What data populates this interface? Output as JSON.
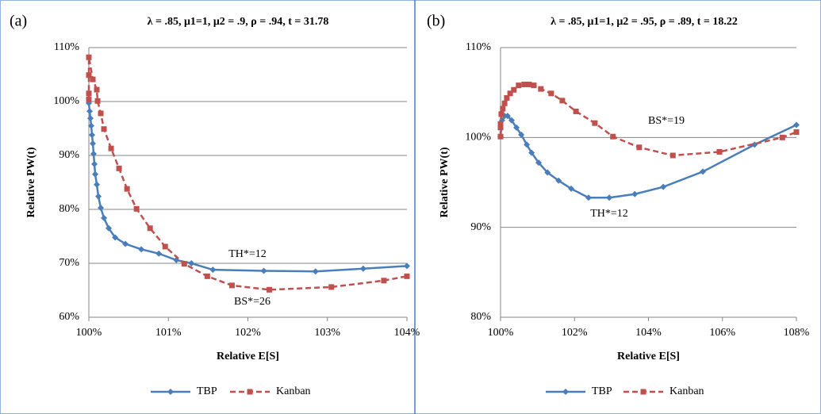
{
  "chart_data": [
    {
      "type": "line",
      "panel_label": "(a)",
      "title": "λ = .85, μ1=1, μ2 = .9, ρ = .94, t = 31.78",
      "x_label": "Relative E[S]",
      "y_label": "Relative PW(t)",
      "xlim": [
        100,
        104
      ],
      "ylim": [
        60,
        110
      ],
      "grid": true,
      "legend": "bottom",
      "xticks": [
        {
          "value": 100,
          "label": "100%"
        },
        {
          "value": 101,
          "label": "101%"
        },
        {
          "value": 102,
          "label": "102%"
        },
        {
          "value": 103,
          "label": "103%"
        },
        {
          "value": 104,
          "label": "104%"
        }
      ],
      "yticks": [
        {
          "value": 60,
          "label": "60%"
        },
        {
          "value": 70,
          "label": "70%"
        },
        {
          "value": 80,
          "label": "80%"
        },
        {
          "value": 90,
          "label": "90%"
        },
        {
          "value": 100,
          "label": "100%"
        },
        {
          "value": 110,
          "label": "110%"
        }
      ],
      "annotations": [
        "TH*=12",
        "BS*=26"
      ],
      "series": [
        {
          "name": "TBP",
          "color": "#4a7ebb",
          "marker": "diamond",
          "dash": false,
          "x": [
            100.0,
            100.01,
            100.02,
            100.03,
            100.04,
            100.05,
            100.06,
            100.07,
            100.08,
            100.1,
            100.12,
            100.15,
            100.19,
            100.25,
            100.33,
            100.46,
            100.66,
            100.88,
            101.1,
            101.29,
            101.56,
            102.2,
            102.85,
            103.45,
            104.0
          ],
          "values": [
            99.7,
            98.2,
            96.9,
            95.5,
            93.8,
            92.2,
            90.3,
            88.4,
            86.5,
            84.6,
            82.4,
            80.3,
            78.4,
            76.5,
            74.8,
            73.6,
            72.6,
            71.8,
            70.6,
            70.0,
            68.8,
            68.6,
            68.5,
            69.0,
            69.5
          ]
        },
        {
          "name": "Kanban",
          "color": "#c0504d",
          "marker": "square",
          "dash": true,
          "x": [
            100.0,
            100.0,
            100.0,
            100.0,
            100.05,
            100.1,
            100.11,
            100.15,
            100.19,
            100.28,
            100.38,
            100.48,
            100.6,
            100.77,
            100.96,
            101.2,
            101.49,
            101.8,
            102.27,
            103.05,
            103.71,
            104.0
          ],
          "values": [
            100.4,
            101.5,
            104.9,
            108.2,
            104.1,
            102.2,
            100.1,
            97.8,
            94.9,
            91.3,
            87.6,
            83.8,
            80.1,
            76.5,
            73.1,
            69.9,
            67.6,
            65.9,
            65.1,
            65.6,
            66.8,
            67.6
          ]
        }
      ]
    },
    {
      "type": "line",
      "panel_label": "(b)",
      "title": "λ = .85, μ1=1, μ2 = .95, ρ = .89, t = 18.22",
      "x_label": "Relative E[S]",
      "y_label": "Relative PW(t)",
      "xlim": [
        100,
        108
      ],
      "ylim": [
        80,
        110
      ],
      "grid": true,
      "legend": "bottom",
      "xticks": [
        {
          "value": 100,
          "label": "100%"
        },
        {
          "value": 102,
          "label": "102%"
        },
        {
          "value": 104,
          "label": "104%"
        },
        {
          "value": 106,
          "label": "106%"
        },
        {
          "value": 108,
          "label": "108%"
        }
      ],
      "yticks": [
        {
          "value": 80,
          "label": "80%"
        },
        {
          "value": 90,
          "label": "90%"
        },
        {
          "value": 100,
          "label": "100%"
        },
        {
          "value": 110,
          "label": "110%"
        }
      ],
      "annotations": [
        "BS*=19",
        "TH*=12"
      ],
      "series": [
        {
          "name": "TBP",
          "color": "#4a7ebb",
          "marker": "diamond",
          "dash": false,
          "x": [
            100.0,
            100.04,
            100.11,
            100.19,
            100.3,
            100.43,
            100.56,
            100.71,
            100.84,
            101.03,
            101.27,
            101.57,
            101.91,
            102.38,
            102.94,
            103.63,
            104.4,
            105.47,
            106.87,
            108.0
          ],
          "values": [
            100.1,
            101.9,
            102.4,
            102.4,
            101.9,
            101.1,
            100.3,
            99.2,
            98.3,
            97.2,
            96.1,
            95.2,
            94.3,
            93.3,
            93.3,
            93.7,
            94.5,
            96.2,
            99.2,
            101.4
          ]
        },
        {
          "name": "Kanban",
          "color": "#c0504d",
          "marker": "square",
          "dash": true,
          "x": [
            100.0,
            100.0,
            100.0,
            100.02,
            100.06,
            100.11,
            100.17,
            100.26,
            100.36,
            100.49,
            100.64,
            100.77,
            100.9,
            101.09,
            101.37,
            101.67,
            102.04,
            102.55,
            103.04,
            103.75,
            104.66,
            105.92,
            107.62,
            108.0
          ],
          "values": [
            100.1,
            101.1,
            101.5,
            102.6,
            103.2,
            103.8,
            104.4,
            104.9,
            105.3,
            105.8,
            105.9,
            105.9,
            105.8,
            105.4,
            104.9,
            104.1,
            102.9,
            101.6,
            100.1,
            98.9,
            98.0,
            98.4,
            100.0,
            100.6
          ]
        }
      ]
    }
  ]
}
